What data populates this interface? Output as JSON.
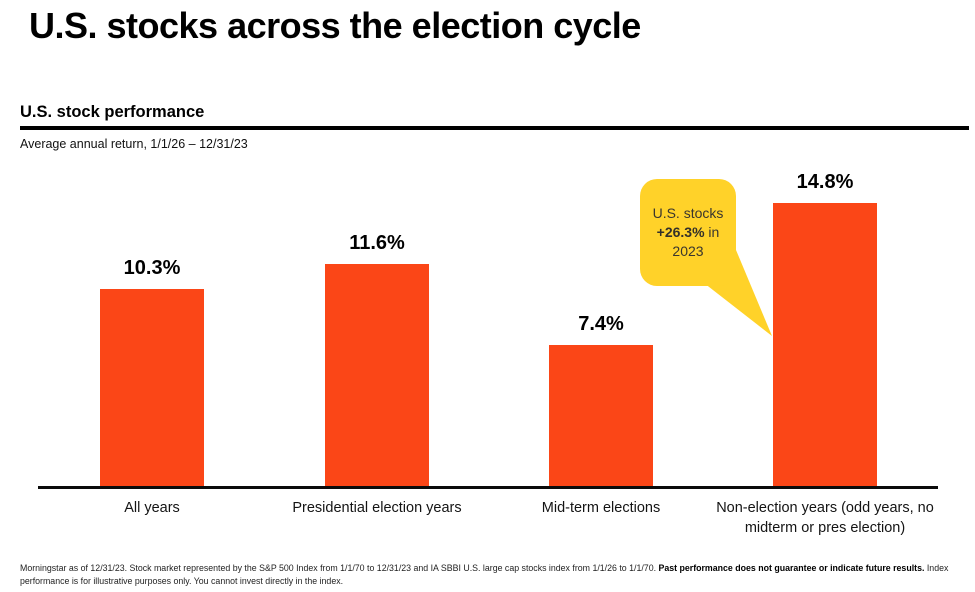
{
  "page_title": "U.S. stocks across the election cycle",
  "header": {
    "section_title": "U.S. stock performance",
    "period_label": "Average annual return, 1/1/26 – 12/31/23"
  },
  "chart_data": {
    "type": "bar",
    "title": "U.S. stock performance",
    "subtitle": "Average annual return, 1/1/26 – 12/31/23",
    "categories": [
      "All years",
      "Presidential election years",
      "Mid-term elections",
      "Non-election years (odd years, no midterm or pres election)"
    ],
    "values": [
      10.3,
      11.6,
      7.4,
      14.8
    ],
    "value_labels": [
      "10.3%",
      "11.6%",
      "7.4%",
      "14.8%"
    ],
    "bar_color": "#FB4617",
    "axis_color": "#0b0b0b",
    "ylim": [
      0,
      16
    ],
    "grid": false,
    "legend": "none",
    "annotation": {
      "text": "U.S. stocks +26.3% in 2023",
      "target_category": "Non-election years (odd years, no midterm or pres election)"
    }
  },
  "callout": {
    "line1": "U.S. stocks",
    "value_bold": "+26.3%",
    "line2_rest": " in",
    "line3": "2023",
    "bg_color": "#FFD229"
  },
  "footnote": {
    "text_before": "Morningstar as of 12/31/23.  Stock market represented by the S&P 500 Index from 1/1/70 to 12/31/23 and  IA SBBI U.S. large cap stocks index from 1/1/26 to 1/1/70. ",
    "text_bold": "Past performance does not guarantee or indicate future results.",
    "text_after": " Index performance is for illustrative purposes only. You cannot invest directly in the index."
  }
}
